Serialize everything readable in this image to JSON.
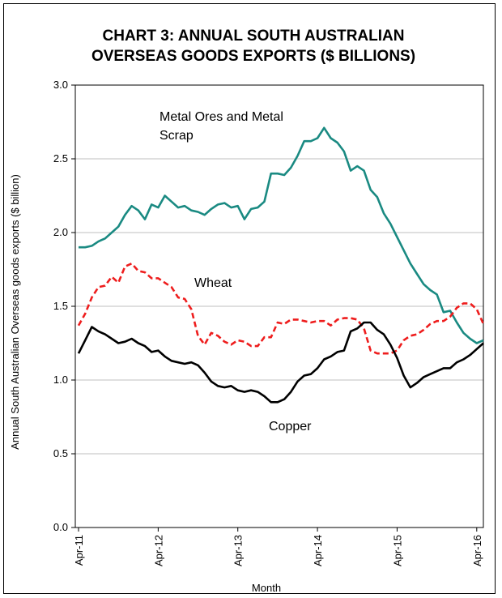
{
  "chart_data": {
    "type": "line",
    "title_line1": "CHART 3: ANNUAL SOUTH AUSTRALIAN",
    "title_line2": "OVERSEAS GOODS EXPORTS ($ BILLIONS)",
    "xlabel": "Month",
    "ylabel": "Annual South Australian Overseas goods exports ($ billion)",
    "ylim": [
      0,
      3
    ],
    "yticks": [
      "0.0",
      "0.5",
      "1.0",
      "1.5",
      "2.0",
      "2.5",
      "3.0"
    ],
    "yticks_values": [
      0,
      0.5,
      1,
      1.5,
      2,
      2.5,
      3
    ],
    "xticks": [
      "Apr-11",
      "Apr-12",
      "Apr-13",
      "Apr-14",
      "Apr-15",
      "Apr-16"
    ],
    "grid": "horizontal",
    "series": [
      {
        "name": "Metal Ores and Metal Scrap",
        "label_line1": "Metal Ores and Metal",
        "label_line2": "Scrap",
        "color": "#1a8a82",
        "style": "solid",
        "values": [
          1.9,
          1.9,
          1.91,
          1.94,
          1.96,
          2.0,
          2.04,
          2.12,
          2.18,
          2.15,
          2.09,
          2.19,
          2.17,
          2.25,
          2.21,
          2.17,
          2.18,
          2.15,
          2.14,
          2.12,
          2.16,
          2.19,
          2.2,
          2.17,
          2.18,
          2.09,
          2.16,
          2.17,
          2.21,
          2.4,
          2.4,
          2.39,
          2.44,
          2.52,
          2.62,
          2.62,
          2.64,
          2.71,
          2.64,
          2.61,
          2.55,
          2.42,
          2.45,
          2.42,
          2.29,
          2.24,
          2.13,
          2.06,
          1.97,
          1.88,
          1.79,
          1.72,
          1.65,
          1.61,
          1.58,
          1.46,
          1.47,
          1.39,
          1.32,
          1.28,
          1.25,
          1.27
        ]
      },
      {
        "name": "Wheat",
        "label": "Wheat",
        "color": "#ee1d1d",
        "style": "dashed",
        "values": [
          1.37,
          1.45,
          1.56,
          1.63,
          1.64,
          1.7,
          1.66,
          1.77,
          1.79,
          1.74,
          1.73,
          1.69,
          1.69,
          1.66,
          1.63,
          1.56,
          1.55,
          1.48,
          1.3,
          1.24,
          1.32,
          1.3,
          1.26,
          1.24,
          1.27,
          1.26,
          1.23,
          1.23,
          1.29,
          1.29,
          1.39,
          1.38,
          1.41,
          1.41,
          1.4,
          1.39,
          1.4,
          1.4,
          1.37,
          1.41,
          1.42,
          1.42,
          1.41,
          1.35,
          1.2,
          1.18,
          1.18,
          1.18,
          1.2,
          1.27,
          1.3,
          1.31,
          1.34,
          1.38,
          1.4,
          1.4,
          1.43,
          1.49,
          1.52,
          1.52,
          1.48,
          1.38
        ]
      },
      {
        "name": "Copper",
        "label": "Copper",
        "color": "#000000",
        "style": "solid",
        "values": [
          1.18,
          1.27,
          1.36,
          1.33,
          1.31,
          1.28,
          1.25,
          1.26,
          1.28,
          1.25,
          1.23,
          1.19,
          1.2,
          1.16,
          1.13,
          1.12,
          1.11,
          1.12,
          1.1,
          1.05,
          0.99,
          0.96,
          0.95,
          0.96,
          0.93,
          0.92,
          0.93,
          0.92,
          0.89,
          0.85,
          0.85,
          0.87,
          0.92,
          0.99,
          1.03,
          1.04,
          1.08,
          1.14,
          1.16,
          1.19,
          1.2,
          1.33,
          1.35,
          1.39,
          1.39,
          1.34,
          1.31,
          1.24,
          1.15,
          1.03,
          0.95,
          0.98,
          1.02,
          1.04,
          1.06,
          1.08,
          1.08,
          1.12,
          1.14,
          1.17,
          1.21,
          1.25
        ]
      }
    ]
  }
}
